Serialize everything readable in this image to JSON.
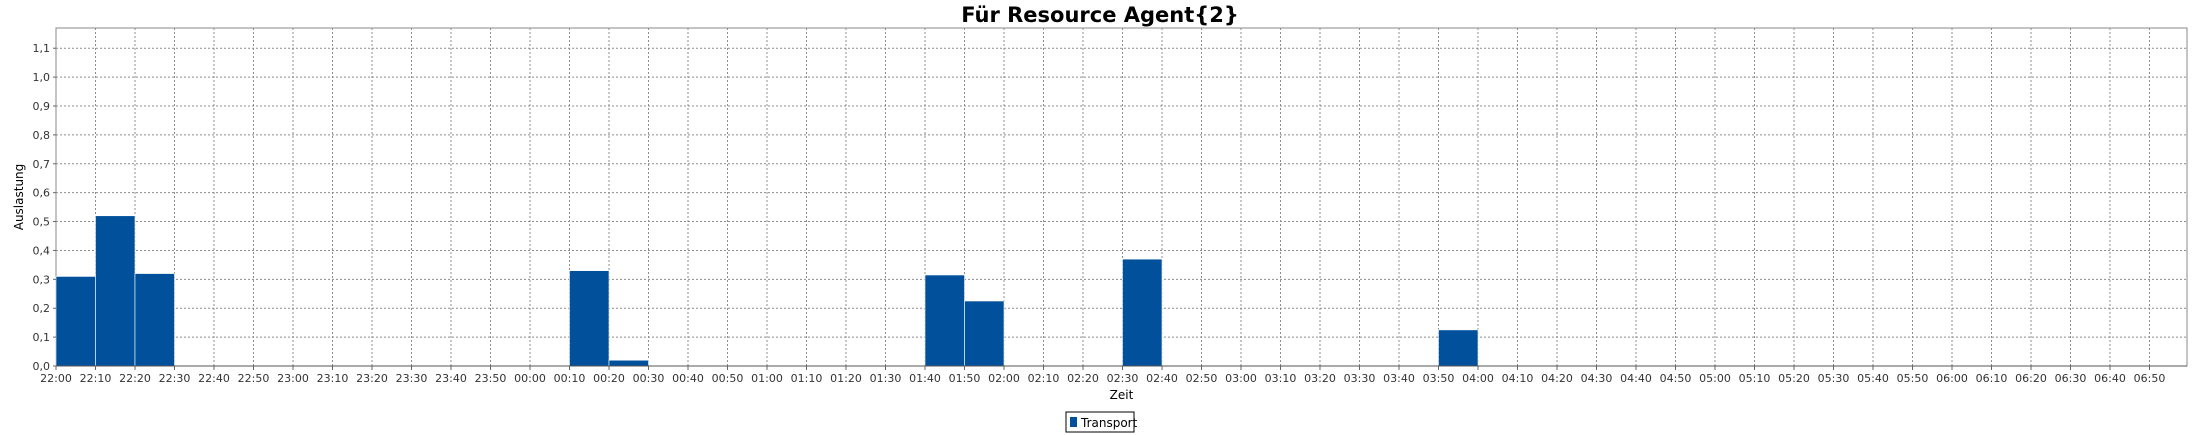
{
  "chart_data": {
    "type": "bar",
    "title": "Für Resource Agent{2}",
    "xlabel": "Zeit",
    "ylabel": "Auslastung",
    "ylim": [
      0,
      1.17
    ],
    "yticks": [
      "0,0",
      "0,1",
      "0,2",
      "0,3",
      "0,4",
      "0,5",
      "0,6",
      "0,7",
      "0,8",
      "0,9",
      "1,0",
      "1,1"
    ],
    "grid": true,
    "legend_position": "bottom-center",
    "bar_color": "#00509b",
    "categories": [
      "22:00",
      "22:10",
      "22:20",
      "22:30",
      "22:40",
      "22:50",
      "23:00",
      "23:10",
      "23:20",
      "23:30",
      "23:40",
      "23:50",
      "00:00",
      "00:10",
      "00:20",
      "00:30",
      "00:40",
      "00:50",
      "01:00",
      "01:10",
      "01:20",
      "01:30",
      "01:40",
      "01:50",
      "02:00",
      "02:10",
      "02:20",
      "02:30",
      "02:40",
      "02:50",
      "03:00",
      "03:10",
      "03:20",
      "03:30",
      "03:40",
      "03:50",
      "04:00",
      "04:10",
      "04:20",
      "04:30",
      "04:40",
      "04:50",
      "05:00",
      "05:10",
      "05:20",
      "05:30",
      "05:40",
      "05:50",
      "06:00",
      "06:10",
      "06:20",
      "06:30",
      "06:40",
      "06:50"
    ],
    "series": [
      {
        "name": "Transport",
        "values": [
          0.31,
          0.52,
          0.32,
          0,
          0,
          0,
          0,
          0,
          0,
          0,
          0,
          0,
          0,
          0.33,
          0.02,
          0,
          0,
          0,
          0,
          0,
          0,
          0,
          0.315,
          0.225,
          0,
          0,
          0,
          0.37,
          0,
          0,
          0,
          0,
          0,
          0,
          0,
          0.125,
          0,
          0,
          0,
          0,
          0,
          0,
          0,
          0,
          0,
          0,
          0,
          0,
          0,
          0,
          0,
          0,
          0,
          0
        ]
      }
    ]
  }
}
